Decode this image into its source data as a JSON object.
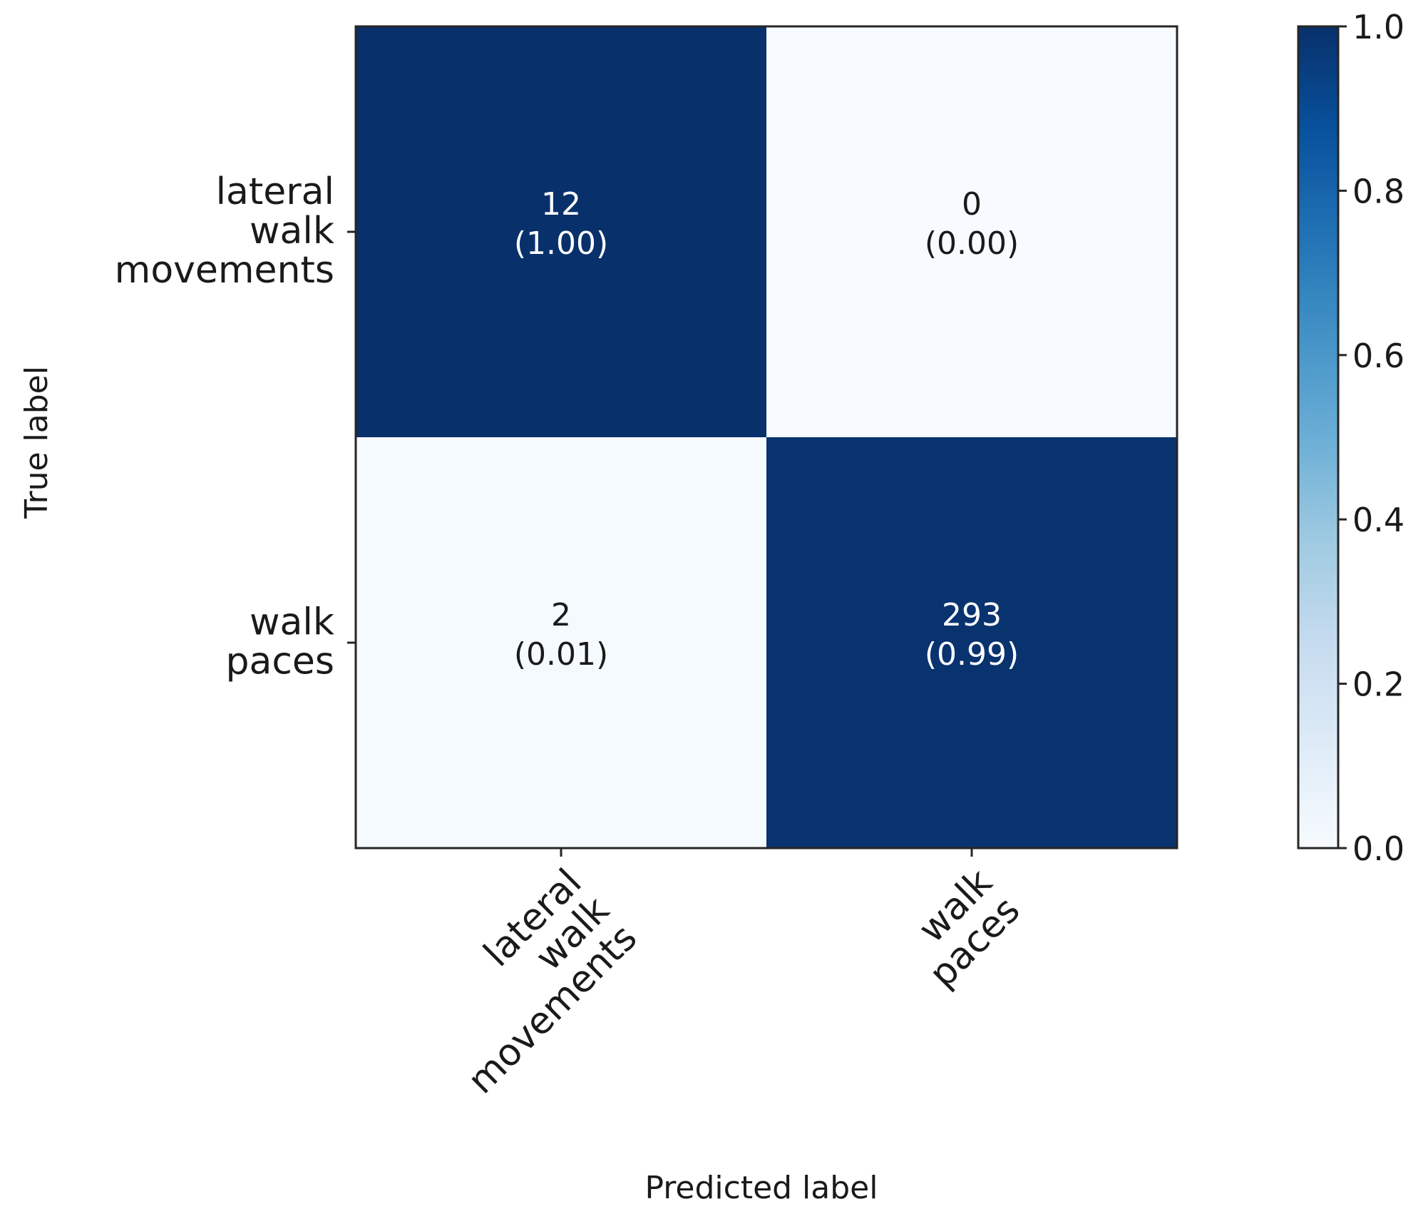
{
  "chart_data": {
    "type": "heatmap",
    "row_labels": [
      [
        "lateral",
        "walk",
        "movements"
      ],
      [
        "walk",
        "paces"
      ]
    ],
    "col_labels": [
      [
        "lateral",
        "walk",
        "movements"
      ],
      [
        "walk",
        "paces"
      ]
    ],
    "counts": [
      [
        12,
        0
      ],
      [
        2,
        293
      ]
    ],
    "normalized": [
      [
        1.0,
        0.0
      ],
      [
        0.01,
        0.99
      ]
    ],
    "cell_text": [
      [
        [
          "12",
          "(1.00)"
        ],
        [
          "0",
          "(0.00)"
        ]
      ],
      [
        [
          "2",
          "(0.01)"
        ],
        [
          "293",
          "(0.99)"
        ]
      ]
    ],
    "xlabel": "Predicted label",
    "ylabel": "True label",
    "colorbar": {
      "range": [
        0.0,
        1.0
      ],
      "ticks": [
        0.0,
        0.2,
        0.4,
        0.6,
        0.8,
        1.0
      ],
      "tick_labels": [
        "0.0",
        "0.2",
        "0.4",
        "0.6",
        "0.8",
        "1.0"
      ],
      "colormap": "Blues"
    },
    "grid": false
  },
  "colors": {
    "high": "#08306b",
    "low": "#f7fbff",
    "text_on_dark": "#ffffff",
    "text_on_light": "#1a1a1a",
    "axis": "#262626"
  }
}
